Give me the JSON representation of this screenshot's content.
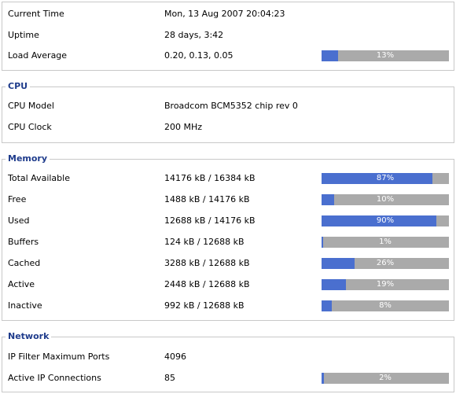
{
  "status": {
    "rows": [
      {
        "label": "Current Time",
        "value": "Mon, 13 Aug 2007 20:04:23"
      },
      {
        "label": "Uptime",
        "value": "28 days, 3:42"
      },
      {
        "label": "Load Average",
        "value": "0.20, 0.13, 0.05",
        "percent": 13,
        "percent_label": "13%"
      }
    ]
  },
  "cpu": {
    "title": "CPU",
    "rows": [
      {
        "label": "CPU Model",
        "value": "Broadcom BCM5352 chip rev 0"
      },
      {
        "label": "CPU Clock",
        "value": "200 MHz"
      }
    ]
  },
  "memory": {
    "title": "Memory",
    "rows": [
      {
        "label": "Total Available",
        "value": "14176 kB / 16384 kB",
        "percent": 87,
        "percent_label": "87%"
      },
      {
        "label": "Free",
        "value": "1488 kB / 14176 kB",
        "percent": 10,
        "percent_label": "10%"
      },
      {
        "label": "Used",
        "value": "12688 kB / 14176 kB",
        "percent": 90,
        "percent_label": "90%"
      },
      {
        "label": "Buffers",
        "value": "124 kB / 12688 kB",
        "percent": 1,
        "percent_label": "1%"
      },
      {
        "label": "Cached",
        "value": "3288 kB / 12688 kB",
        "percent": 26,
        "percent_label": "26%"
      },
      {
        "label": "Active",
        "value": "2448 kB / 12688 kB",
        "percent": 19,
        "percent_label": "19%"
      },
      {
        "label": "Inactive",
        "value": "992 kB / 12688 kB",
        "percent": 8,
        "percent_label": "8%"
      }
    ]
  },
  "network": {
    "title": "Network",
    "rows": [
      {
        "label": "IP Filter Maximum Ports",
        "value": "4096"
      },
      {
        "label": "Active IP Connections",
        "value": "85",
        "percent": 2,
        "percent_label": "2%"
      }
    ]
  },
  "colors": {
    "bar_fill": "#4a6fcf",
    "bar_track": "#aaaaaa",
    "legend": "#1f3c8c"
  }
}
